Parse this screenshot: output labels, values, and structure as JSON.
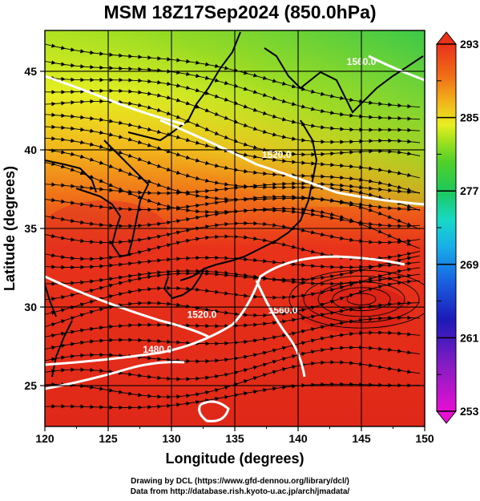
{
  "title": "MSM 18Z17Sep2024 (850.0hPa)",
  "map": {
    "lon_range": [
      120,
      150
    ],
    "lat_range": [
      22.4,
      47.6
    ],
    "x_ticks": [
      "120",
      "125",
      "130",
      "135",
      "140",
      "145",
      "150"
    ],
    "y_ticks": [
      "25",
      "30",
      "35",
      "40",
      "45"
    ],
    "xlabel": "Longitude (degrees)",
    "ylabel": "Latitude  (degrees)",
    "field_description": "temperature shading with streamlines and geopotential height contours",
    "contour_labels": [
      {
        "text": "1560.0",
        "lon": 145.0,
        "lat": 45.4
      },
      {
        "text": "1520.0",
        "lon": 138.3,
        "lat": 39.5
      },
      {
        "text": "1560.0",
        "lon": 138.8,
        "lat": 29.6
      },
      {
        "text": "1520.0",
        "lon": 132.4,
        "lat": 29.3
      },
      {
        "text": "1480.0",
        "lon": 128.9,
        "lat": 27.1
      }
    ]
  },
  "colorbar": {
    "min": 253,
    "max": 293,
    "tick_labels": [
      "293",
      "285",
      "277",
      "269",
      "261",
      "253"
    ],
    "tick_values": [
      293,
      285,
      277,
      269,
      261,
      253
    ],
    "colors": [
      "#e60fd2",
      "#8a1cc4",
      "#1c1ab8",
      "#1a5ee0",
      "#18b0e8",
      "#18d8c8",
      "#1ec85a",
      "#52d02a",
      "#a8e21e",
      "#e8ee22",
      "#f2b61c",
      "#f07018",
      "#e8321a",
      "#e03a3a"
    ]
  },
  "credits": {
    "line1": "Drawing by DCL (https://www.gfd-dennou.org/library/dcl/)",
    "line2": "Data from http://database.rish.kyoto-u.ac.jp/arch/jmadata/"
  }
}
